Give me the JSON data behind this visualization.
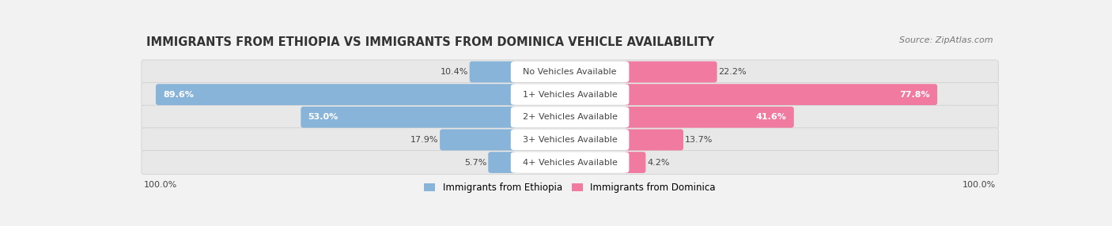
{
  "title": "IMMIGRANTS FROM ETHIOPIA VS IMMIGRANTS FROM DOMINICA VEHICLE AVAILABILITY",
  "source": "Source: ZipAtlas.com",
  "categories": [
    "No Vehicles Available",
    "1+ Vehicles Available",
    "2+ Vehicles Available",
    "3+ Vehicles Available",
    "4+ Vehicles Available"
  ],
  "ethiopia_values": [
    10.4,
    89.6,
    53.0,
    17.9,
    5.7
  ],
  "dominica_values": [
    22.2,
    77.8,
    41.6,
    13.7,
    4.2
  ],
  "ethiopia_color": "#89b4d9",
  "dominica_color": "#f07aa0",
  "ethiopia_label": "Immigrants from Ethiopia",
  "dominica_label": "Immigrants from Dominica",
  "background_color": "#f2f2f2",
  "row_bg_color": "#e4e4e4",
  "label_bg": "#ffffff",
  "total_label": "100.0%",
  "title_fontsize": 10.5,
  "source_fontsize": 8,
  "value_fontsize": 8,
  "category_fontsize": 8
}
